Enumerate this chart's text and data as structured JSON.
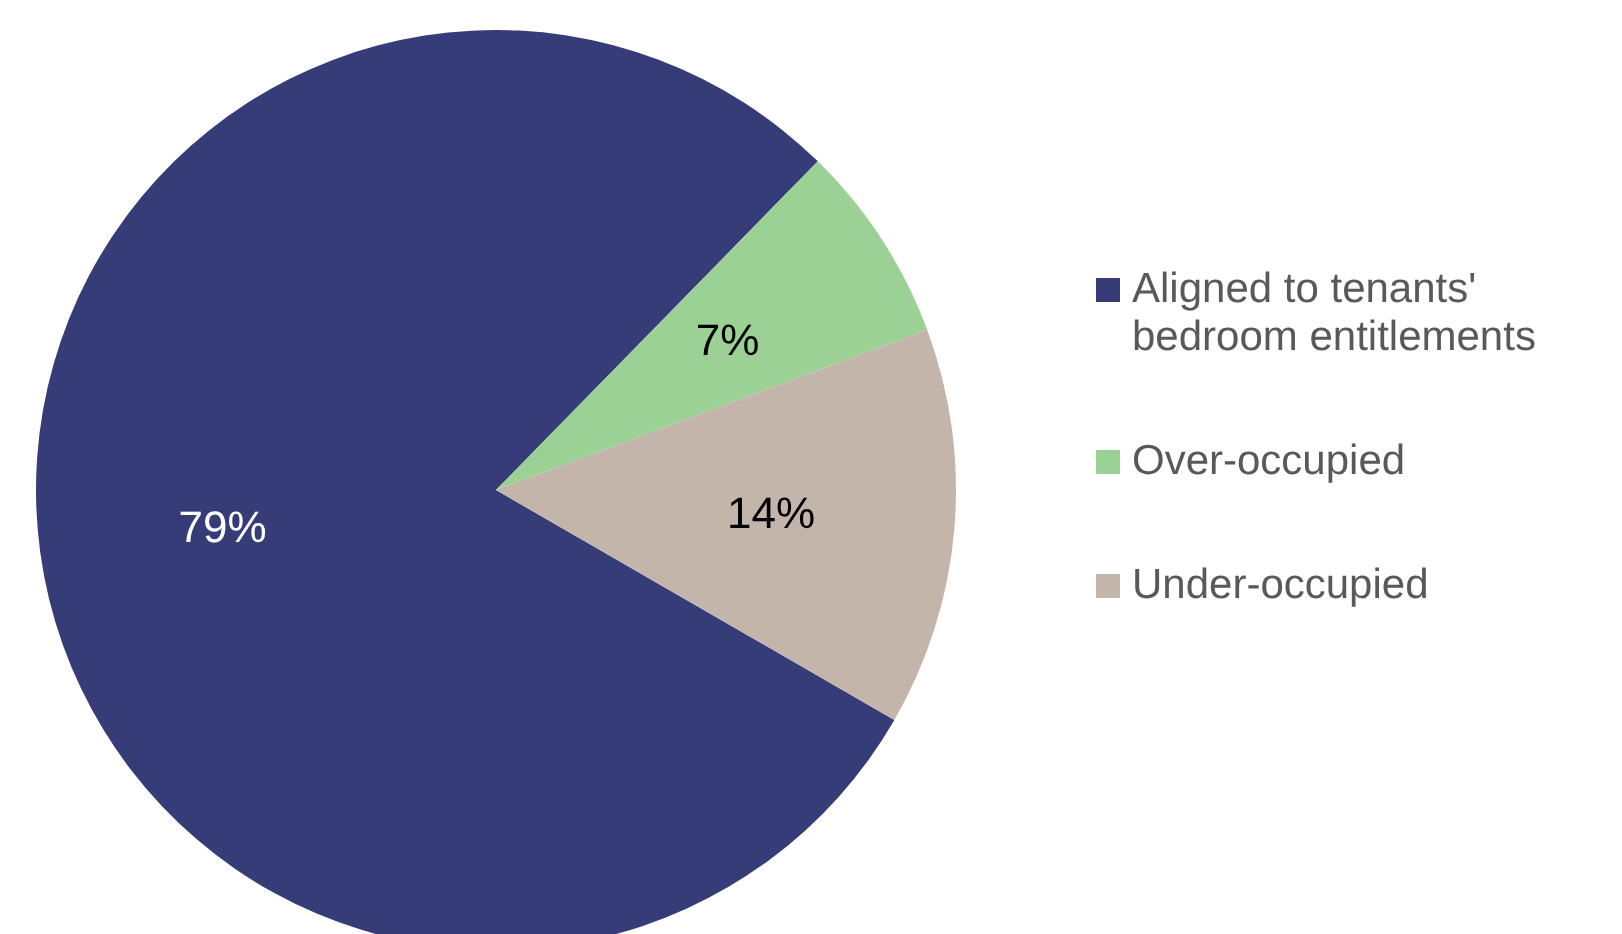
{
  "chart_data": {
    "type": "pie",
    "categories": [
      "Aligned to tenants' bedroom entitlements",
      "Over-occupied",
      "Under-occupied"
    ],
    "values": [
      79,
      7,
      14
    ],
    "colors": [
      "#363c78",
      "#9bd194",
      "#c4b5ab"
    ],
    "value_labels": [
      "79%",
      "7%",
      "14%"
    ],
    "legend": "right"
  }
}
